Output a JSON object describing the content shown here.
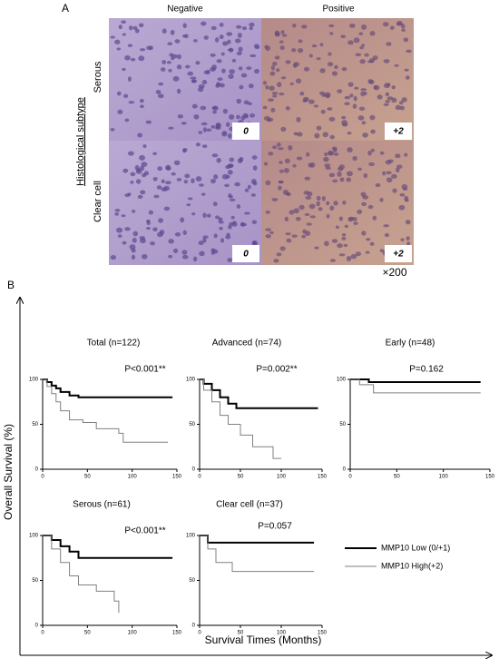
{
  "panel_a": {
    "label": "A",
    "columns": [
      "Negative",
      "Positive"
    ],
    "group_label": "Histological subtype",
    "rows": [
      "Serous",
      "Clear cell"
    ],
    "scores": [
      [
        "0",
        "+2"
      ],
      [
        "0",
        "+2"
      ]
    ],
    "magnification": "×200"
  },
  "panel_b": {
    "label": "B",
    "y_label": "Overall Survival (%)",
    "x_label": "Survival Times (Months)"
  },
  "chart_data": [
    {
      "type": "line",
      "title": "Total (n=122)",
      "annotation": "P<0.001**",
      "xlim": [
        0,
        150
      ],
      "xticks": [
        0,
        50,
        100,
        150
      ],
      "ylim": [
        0,
        100
      ],
      "yticks": [
        0,
        50,
        100
      ],
      "series": [
        {
          "name": "MMP10 Low (0/+1)",
          "color": "#000000",
          "x": [
            0,
            5,
            5,
            10,
            10,
            15,
            15,
            20,
            20,
            30,
            30,
            40,
            40,
            145
          ],
          "values": [
            100,
            100,
            97,
            97,
            93,
            93,
            90,
            90,
            86,
            86,
            82,
            82,
            80,
            80
          ]
        },
        {
          "name": "MMP10 High(+2)",
          "color": "#808080",
          "x": [
            0,
            5,
            5,
            10,
            10,
            15,
            15,
            20,
            20,
            30,
            30,
            45,
            45,
            60,
            60,
            85,
            85,
            90,
            90,
            140
          ],
          "values": [
            100,
            100,
            92,
            92,
            84,
            84,
            75,
            75,
            65,
            65,
            55,
            55,
            52,
            52,
            45,
            45,
            40,
            40,
            30,
            30
          ]
        }
      ]
    },
    {
      "type": "line",
      "title": "Advanced (n=74)",
      "annotation": "P=0.002**",
      "xlim": [
        0,
        150
      ],
      "xticks": [
        0,
        50,
        100,
        150
      ],
      "ylim": [
        0,
        100
      ],
      "yticks": [
        0,
        50,
        100
      ],
      "series": [
        {
          "name": "MMP10 Low (0/+1)",
          "color": "#000000",
          "x": [
            0,
            5,
            5,
            15,
            15,
            25,
            25,
            35,
            35,
            45,
            45,
            145
          ],
          "values": [
            100,
            100,
            95,
            95,
            88,
            88,
            80,
            80,
            73,
            73,
            68,
            68
          ]
        },
        {
          "name": "MMP10 High(+2)",
          "color": "#808080",
          "x": [
            0,
            5,
            5,
            15,
            15,
            25,
            25,
            35,
            35,
            50,
            50,
            65,
            65,
            90,
            90,
            100
          ],
          "values": [
            100,
            100,
            88,
            88,
            75,
            75,
            60,
            60,
            50,
            50,
            38,
            38,
            25,
            25,
            12,
            12
          ]
        }
      ]
    },
    {
      "type": "line",
      "title": "Early (n=48)",
      "annotation": "P=0.162",
      "xlim": [
        0,
        150
      ],
      "xticks": [
        0,
        50,
        100,
        150
      ],
      "ylim": [
        0,
        100
      ],
      "yticks": [
        0,
        50,
        100
      ],
      "series": [
        {
          "name": "MMP10 Low (0/+1)",
          "color": "#000000",
          "x": [
            0,
            20,
            20,
            140
          ],
          "values": [
            100,
            100,
            97,
            97
          ]
        },
        {
          "name": "MMP10 High(+2)",
          "color": "#808080",
          "x": [
            0,
            10,
            10,
            25,
            25,
            140
          ],
          "values": [
            100,
            100,
            94,
            94,
            85,
            85
          ]
        }
      ]
    },
    {
      "type": "line",
      "title": "Serous (n=61)",
      "annotation": "P<0.001**",
      "xlim": [
        0,
        150
      ],
      "xticks": [
        0,
        50,
        100,
        150
      ],
      "ylim": [
        0,
        100
      ],
      "yticks": [
        0,
        50,
        100
      ],
      "series": [
        {
          "name": "MMP10 Low (0/+1)",
          "color": "#000000",
          "x": [
            0,
            10,
            10,
            20,
            20,
            30,
            30,
            40,
            40,
            145
          ],
          "values": [
            100,
            100,
            95,
            95,
            88,
            88,
            82,
            82,
            75,
            75
          ]
        },
        {
          "name": "MMP10 High(+2)",
          "color": "#808080",
          "x": [
            0,
            10,
            10,
            20,
            20,
            30,
            30,
            40,
            40,
            60,
            60,
            80,
            80,
            85,
            85
          ],
          "values": [
            100,
            100,
            85,
            85,
            70,
            70,
            55,
            55,
            45,
            45,
            38,
            38,
            27,
            27,
            14
          ]
        }
      ]
    },
    {
      "type": "line",
      "title": "Clear cell (n=37)",
      "annotation": "P=0.057",
      "xlim": [
        0,
        150
      ],
      "xticks": [
        0,
        50,
        100,
        150
      ],
      "ylim": [
        0,
        100
      ],
      "yticks": [
        0,
        50,
        100
      ],
      "series": [
        {
          "name": "MMP10 Low (0/+1)",
          "color": "#000000",
          "x": [
            0,
            10,
            10,
            140
          ],
          "values": [
            100,
            100,
            92,
            92
          ]
        },
        {
          "name": "MMP10 High(+2)",
          "color": "#808080",
          "x": [
            0,
            10,
            10,
            20,
            20,
            40,
            40,
            140
          ],
          "values": [
            100,
            100,
            85,
            85,
            70,
            70,
            60,
            60
          ]
        }
      ]
    }
  ]
}
